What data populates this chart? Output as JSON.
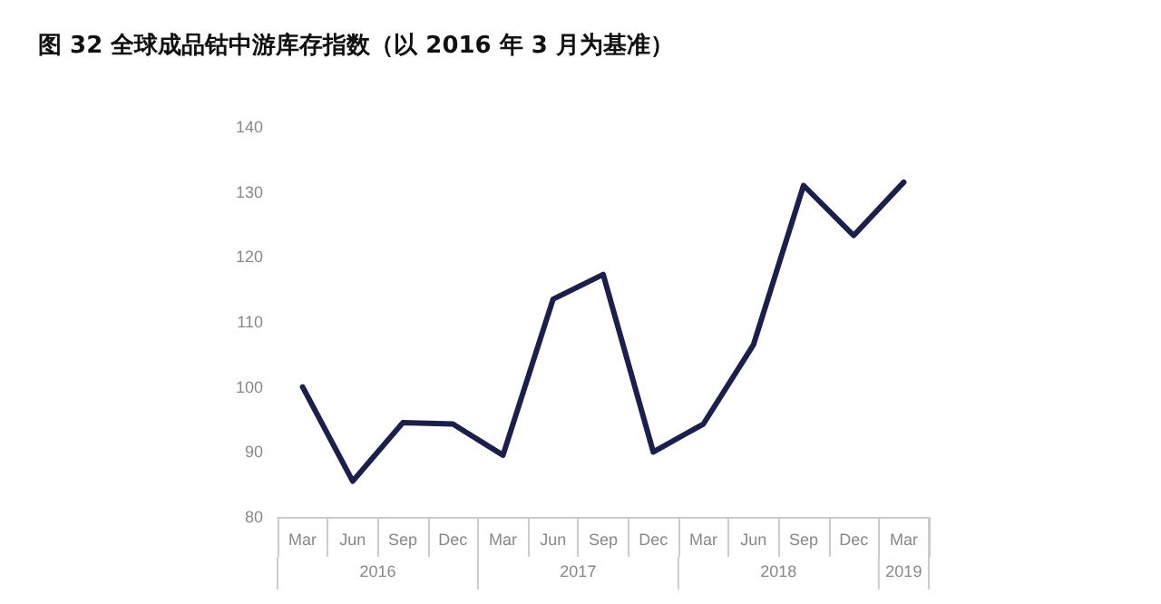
{
  "chart_data": {
    "type": "line",
    "title": "图 32 全球成品钴中游库存指数（以 2016 年 3 月为基准）",
    "categories": [
      "Mar",
      "Jun",
      "Sep",
      "Dec",
      "Mar",
      "Jun",
      "Sep",
      "Dec",
      "Mar",
      "Jun",
      "Sep",
      "Dec",
      "Mar"
    ],
    "values": [
      100,
      85.5,
      94.5,
      94.3,
      89.5,
      113.5,
      117.3,
      90,
      94.3,
      106.5,
      131,
      123.3,
      131.5
    ],
    "color": "#1a1f4e",
    "ylim": [
      80,
      140
    ],
    "yticks": [
      80,
      90,
      100,
      110,
      120,
      130,
      140
    ],
    "annotations": [
      "2016",
      "2017",
      "2018",
      "2019"
    ],
    "grid": false,
    "marker": "none",
    "line_style": "solid"
  }
}
